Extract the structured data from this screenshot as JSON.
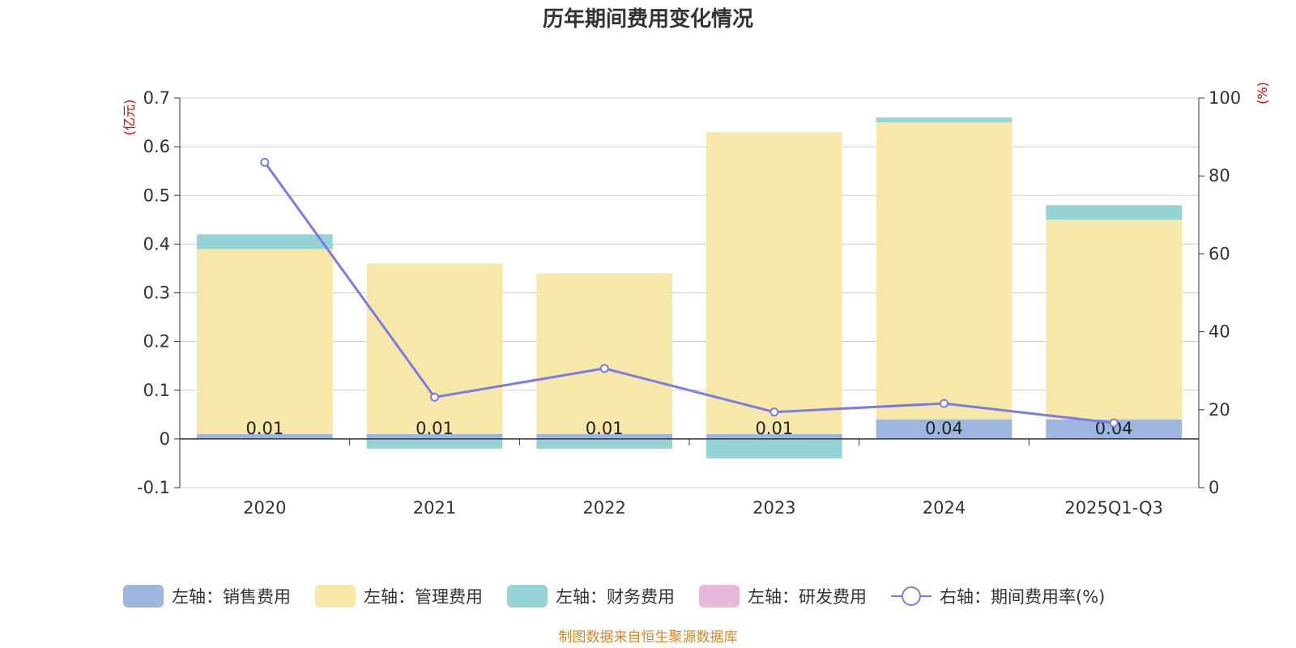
{
  "chart_data": {
    "type": "bar",
    "stacked": true,
    "title": "历年期间费用变化情况",
    "categories": [
      "2020",
      "2021",
      "2022",
      "2023",
      "2024",
      "2025Q1-Q3"
    ],
    "left_axis": {
      "unit_label": "(亿元)",
      "ylim": [
        -0.1,
        0.7
      ],
      "ticks": [
        -0.1,
        0,
        0.1,
        0.2,
        0.3,
        0.4,
        0.5,
        0.6,
        0.7
      ],
      "tick_labels": [
        "-0.1",
        "0",
        "0.1",
        "0.2",
        "0.3",
        "0.4",
        "0.5",
        "0.6",
        "0.7"
      ]
    },
    "right_axis": {
      "unit_label": "(%)",
      "ylim": [
        0,
        100
      ],
      "ticks": [
        0,
        20,
        40,
        60,
        80,
        100
      ],
      "tick_labels": [
        "0",
        "20",
        "40",
        "60",
        "80",
        "100"
      ]
    },
    "series": [
      {
        "name": "左轴：销售费用",
        "axis": "left",
        "color": "#9db6e0",
        "values": [
          0.01,
          0.01,
          0.01,
          0.01,
          0.04,
          0.04
        ],
        "data_labels": [
          "0.01",
          "0.01",
          "0.01",
          "0.01",
          "0.04",
          "0.04"
        ]
      },
      {
        "name": "左轴：管理费用",
        "axis": "left",
        "color": "#f7e7a8",
        "values": [
          0.38,
          0.35,
          0.33,
          0.62,
          0.61,
          0.41
        ]
      },
      {
        "name": "左轴：财务费用",
        "axis": "left",
        "color": "#96d3d4",
        "values": [
          0.03,
          -0.02,
          -0.02,
          -0.04,
          0.01,
          0.03
        ]
      },
      {
        "name": "左轴：研发费用",
        "axis": "left",
        "color": "#e7b8d9",
        "values": [
          0,
          0,
          0,
          0,
          0,
          0
        ]
      },
      {
        "name": "右轴：期间费用率(%)",
        "axis": "right",
        "type": "line",
        "color": "#7b7be8",
        "values": [
          83.5,
          23.2,
          30.6,
          19.4,
          21.6,
          16.6
        ]
      }
    ],
    "source_note": "制图数据来自恒生聚源数据库"
  }
}
